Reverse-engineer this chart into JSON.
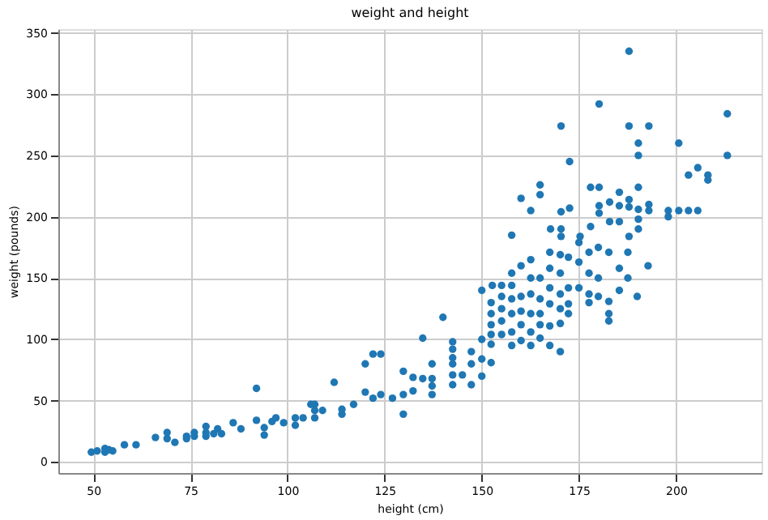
{
  "chart_data": {
    "type": "scatter",
    "title": "weight and height",
    "xlabel": "height (cm)",
    "ylabel": "weight (pounds)",
    "xlim": [
      41,
      222
    ],
    "ylim": [
      -9,
      353
    ],
    "xticks": [
      50,
      75,
      100,
      125,
      150,
      175,
      200
    ],
    "yticks": [
      0,
      50,
      100,
      150,
      200,
      250,
      300,
      350
    ],
    "grid": true,
    "marker": "circle",
    "series": [
      {
        "color": "#1f77b4",
        "x": [
          49.5,
          51,
          53,
          53,
          54,
          55,
          58,
          61,
          66,
          69,
          69,
          71,
          74,
          74,
          76,
          76,
          79,
          79,
          79,
          81,
          82,
          83,
          86,
          88,
          92,
          92,
          94,
          94,
          96,
          97,
          99,
          102,
          102,
          104,
          106,
          107,
          107,
          107,
          109,
          112,
          114,
          114,
          117,
          120,
          120,
          122,
          122,
          124,
          124,
          127,
          129.8,
          129.8,
          129.8,
          132.3,
          132.3,
          134.8,
          134.8,
          137.2,
          137.2,
          137.2,
          137.2,
          140,
          142.5,
          142.5,
          142.5,
          142.5,
          142.5,
          142.5,
          145,
          147.3,
          147.3,
          147.3,
          150,
          150,
          150,
          150,
          152.4,
          152.4,
          152.4,
          152.4,
          152.4,
          152.4,
          152.7,
          155.1,
          155.1,
          155.1,
          155.1,
          155.1,
          157.7,
          157.7,
          157.7,
          157.7,
          157.7,
          157.7,
          160.1,
          160.1,
          160.1,
          160.1,
          160.1,
          162.6,
          162.6,
          162.6,
          162.6,
          162.6,
          162.6,
          165,
          165,
          165,
          165,
          165,
          167.5,
          167.5,
          167.5,
          167.5,
          167.5,
          167.5,
          170.2,
          170.2,
          170.2,
          170.2,
          170.2,
          170.2,
          172.3,
          172.3,
          172.3,
          172.3,
          175,
          175,
          175,
          177.6,
          177.6,
          177.6,
          177.6,
          180,
          180,
          180,
          182.7,
          182.7,
          182.7,
          182.7,
          185.4,
          185.4,
          187.6,
          187.6,
          190,
          192.8,
          187.9,
          180.2,
          170.4,
          187.9,
          193,
          213.2,
          213.2,
          190.3,
          190.3,
          200.7,
          172.6,
          165,
          165,
          160.1,
          162.6,
          170.4,
          172.6,
          178,
          180.2,
          185.4,
          190.3,
          203.2,
          205.6,
          208.2,
          208.2,
          180.2,
          180.2,
          182.9,
          185.4,
          187.9,
          187.9,
          190.3,
          193,
          193,
          198,
          198,
          200.7,
          203.2,
          205.6,
          157.7,
          167.7,
          170.4,
          170.4,
          175.3,
          178,
          182.9,
          185.4,
          187.9,
          190.3,
          190.3
        ],
        "values": [
          8,
          9,
          8,
          11,
          10,
          9,
          14,
          14,
          20,
          19,
          24,
          16,
          19,
          21,
          21,
          24,
          21,
          24,
          29,
          23,
          27,
          23,
          32,
          27,
          60,
          34,
          22,
          28,
          33,
          36,
          32,
          30,
          36,
          36,
          47,
          47,
          42,
          36,
          42,
          65,
          39,
          43,
          47,
          80,
          57,
          88,
          52,
          88,
          55,
          52,
          39,
          74,
          55,
          69,
          58,
          68,
          101,
          80,
          68,
          62,
          55,
          118,
          98,
          92,
          85,
          80,
          71,
          63,
          71,
          90,
          80,
          63,
          140,
          100,
          84,
          70,
          81,
          96,
          104,
          112,
          121,
          130,
          144,
          144,
          135,
          125,
          115,
          104,
          154,
          144,
          133,
          121,
          106,
          95,
          160,
          135,
          123,
          112,
          99,
          165,
          150,
          137,
          121,
          106,
          95,
          150,
          133,
          121,
          112,
          101,
          171,
          158,
          142,
          129,
          111,
          95,
          169,
          154,
          137,
          125,
          113,
          90,
          167,
          142,
          129,
          121,
          179,
          163,
          142,
          171,
          154,
          137,
          130,
          175,
          150,
          135,
          171,
          131,
          121,
          115,
          158,
          140,
          171,
          150,
          135,
          160,
          335,
          292,
          274,
          274,
          274,
          284,
          250,
          260,
          250,
          260,
          245,
          226,
          218,
          215,
          205,
          204,
          207,
          224,
          224,
          220,
          224,
          234,
          240,
          234,
          230,
          209,
          203,
          212,
          209,
          214,
          208,
          206,
          210,
          205,
          205,
          200,
          205,
          205,
          205,
          185,
          190,
          190,
          184,
          184,
          192,
          196,
          196,
          184,
          198,
          190
        ]
      }
    ]
  }
}
